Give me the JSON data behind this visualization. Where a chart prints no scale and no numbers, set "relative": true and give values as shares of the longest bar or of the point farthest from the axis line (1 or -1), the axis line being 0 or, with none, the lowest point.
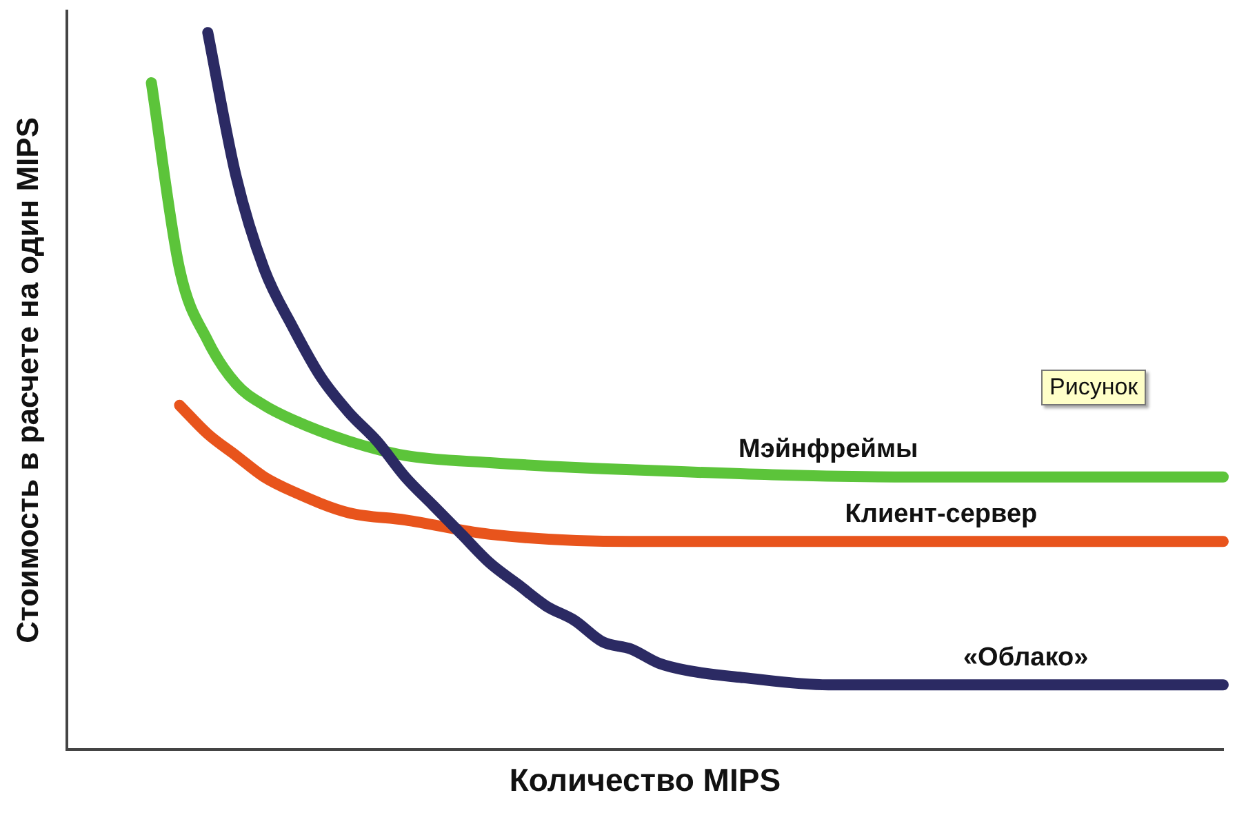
{
  "chart_data": {
    "type": "line",
    "relative": true,
    "xlabel": "Количество MIPS",
    "ylabel": "Стоимость в расчете на один MIPS",
    "annotations": [
      "Рисунок"
    ],
    "categories": [
      null,
      null,
      null,
      null,
      null,
      null,
      null,
      null,
      null,
      null,
      null,
      null,
      null,
      null,
      null,
      null,
      null,
      null,
      null,
      null,
      null,
      null,
      null,
      null,
      null,
      null,
      null,
      null,
      null,
      null,
      null,
      null,
      null,
      null,
      null,
      null,
      null,
      null,
      null,
      null,
      null,
      null
    ],
    "series": [
      {
        "name": "«Облако»",
        "color": "#2b2a63",
        "values": [
          null,
          null,
          null,
          null,
          null,
          1,
          0.8,
          0.67,
          0.59,
          0.52,
          0.47,
          0.43,
          0.38,
          0.34,
          0.3,
          0.26,
          0.23,
          0.2,
          0.18,
          0.15,
          0.14,
          0.12,
          0.11,
          null,
          0.1,
          null,
          null,
          0.09,
          null,
          null,
          null,
          null,
          0.09,
          null,
          null,
          null,
          null,
          null,
          null,
          null,
          null,
          0.09
        ]
      },
      {
        "name": "Мэйнфреймы",
        "color": "#5cc43a",
        "values": [
          null,
          null,
          null,
          0.93,
          0.67,
          0.57,
          0.51,
          0.48,
          0.46,
          null,
          0.43,
          null,
          0.41,
          null,
          null,
          0.4,
          null,
          null,
          null,
          null,
          0.39,
          null,
          null,
          null,
          null,
          null,
          null,
          null,
          null,
          null,
          0.38,
          null,
          null,
          null,
          null,
          null,
          null,
          null,
          null,
          null,
          null,
          0.38
        ]
      },
      {
        "name": "Клиент-сервер",
        "color": "#e8541c",
        "values": [
          null,
          null,
          null,
          null,
          0.48,
          0.44,
          0.41,
          0.38,
          0.36,
          null,
          0.33,
          null,
          0.32,
          null,
          null,
          0.3,
          null,
          null,
          null,
          null,
          0.29,
          null,
          null,
          null,
          null,
          null,
          null,
          null,
          null,
          null,
          0.29,
          null,
          null,
          null,
          null,
          null,
          null,
          null,
          null,
          null,
          null,
          0.29
        ]
      }
    ],
    "grid": false,
    "legend": false,
    "marker": "none",
    "line_style": "solid"
  }
}
